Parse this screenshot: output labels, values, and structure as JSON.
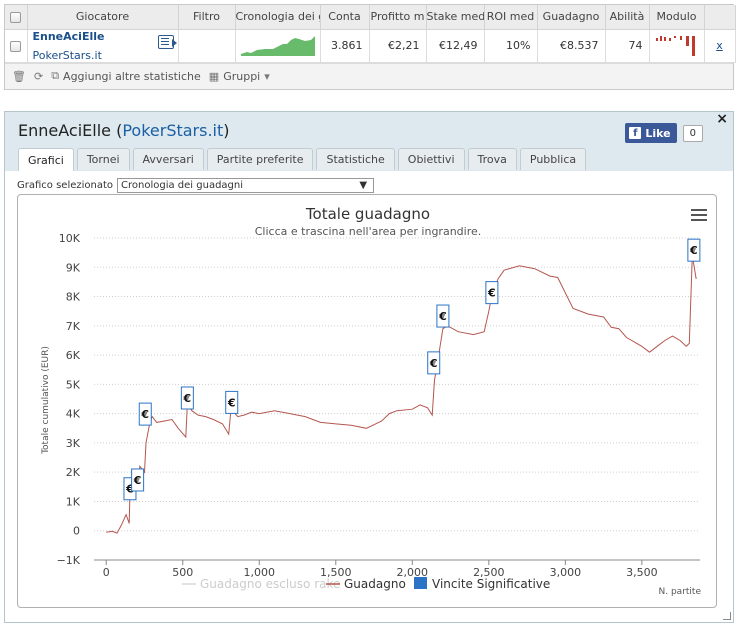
{
  "table": {
    "headers": [
      "",
      "Giocatore",
      "Filtro",
      "Cronologia dei g",
      "Conta",
      "Profitto m",
      "Stake med",
      "ROI med",
      "Guadagno",
      "Abilità",
      "Modulo",
      ""
    ],
    "row": {
      "player_name": "EnneAciElle",
      "site": "PokerStars.it",
      "filter": "",
      "count": "3.861",
      "avg_profit": "€2,21",
      "avg_stake": "€12,49",
      "avg_roi": "10%",
      "profit": "€8.537",
      "ability": "74",
      "remove": "x"
    },
    "sparkline_color": "#4caf50",
    "form_color": "#c0392b"
  },
  "toolbar": {
    "add_stats": "Aggiungi altre statistiche",
    "groups": "Gruppi"
  },
  "panel": {
    "player": "EnneAciElle",
    "open_paren": "(",
    "site": "PokerStars.it",
    "close_paren": ")",
    "close": "×",
    "like_label": "Like",
    "like_count": "0",
    "tabs": [
      "Grafici",
      "Tornei",
      "Avversari",
      "Partite preferite",
      "Statistiche",
      "Obiettivi",
      "Trova",
      "Pubblica"
    ],
    "active_tab": "Grafici",
    "selected_chart_label": "Grafico selezionato",
    "selected_chart_value": "Cronologia dei guadagni"
  },
  "chart_data": {
    "type": "line",
    "title": "Totale guadagno",
    "subtitle": "Clicca e trascina nell'area per ingrandire.",
    "ylabel": "Totale cumulativo (EUR)",
    "xlabel": "N. partite",
    "ylim": [
      -1000,
      10000
    ],
    "xlim": [
      -80,
      3880
    ],
    "y_ticks": [
      "−1K",
      "0",
      "1K",
      "2K",
      "3K",
      "4K",
      "5K",
      "6K",
      "7K",
      "8K",
      "9K",
      "10K"
    ],
    "y_tick_values": [
      -1000,
      0,
      1000,
      2000,
      3000,
      4000,
      5000,
      6000,
      7000,
      8000,
      9000,
      10000
    ],
    "x_ticks": [
      "0",
      "500",
      "1,000",
      "1,500",
      "2,000",
      "2,500",
      "3,000",
      "3,500"
    ],
    "x_tick_values": [
      0,
      500,
      1000,
      1500,
      2000,
      2500,
      3000,
      3500
    ],
    "grid": "horizontal dotted",
    "legend": "bottom",
    "legend_items": [
      {
        "name": "Guadagno escluso rake",
        "color": "#d8d8d8",
        "kind": "line",
        "hidden": true
      },
      {
        "name": "Guadagno",
        "color": "#b5564f",
        "kind": "line"
      },
      {
        "name": "Vincite Significative",
        "color": "#2b73c7",
        "kind": "square"
      }
    ],
    "series": [
      {
        "name": "Guadagno",
        "color": "#b5564f",
        "points": [
          [
            0,
            -50
          ],
          [
            40,
            -20
          ],
          [
            70,
            -80
          ],
          [
            100,
            200
          ],
          [
            130,
            550
          ],
          [
            150,
            250
          ],
          [
            155,
            1400
          ],
          [
            180,
            1700
          ],
          [
            200,
            1500
          ],
          [
            220,
            2200
          ],
          [
            250,
            2000
          ],
          [
            260,
            3000
          ],
          [
            285,
            3700
          ],
          [
            300,
            3900
          ],
          [
            330,
            3700
          ],
          [
            380,
            3750
          ],
          [
            430,
            3800
          ],
          [
            470,
            3500
          ],
          [
            520,
            3200
          ],
          [
            530,
            4300
          ],
          [
            560,
            4100
          ],
          [
            600,
            3950
          ],
          [
            650,
            3900
          ],
          [
            700,
            3800
          ],
          [
            760,
            3650
          ],
          [
            800,
            3300
          ],
          [
            815,
            4150
          ],
          [
            860,
            3900
          ],
          [
            900,
            3950
          ],
          [
            950,
            4050
          ],
          [
            1000,
            4000
          ],
          [
            1100,
            4100
          ],
          [
            1200,
            4000
          ],
          [
            1300,
            3900
          ],
          [
            1400,
            3700
          ],
          [
            1500,
            3650
          ],
          [
            1600,
            3600
          ],
          [
            1700,
            3500
          ],
          [
            1800,
            3750
          ],
          [
            1850,
            4000
          ],
          [
            1900,
            4100
          ],
          [
            2000,
            4150
          ],
          [
            2050,
            4300
          ],
          [
            2100,
            4200
          ],
          [
            2130,
            3950
          ],
          [
            2145,
            5150
          ],
          [
            2160,
            5600
          ],
          [
            2200,
            6900
          ],
          [
            2230,
            7000
          ],
          [
            2300,
            6800
          ],
          [
            2400,
            6700
          ],
          [
            2470,
            6800
          ],
          [
            2500,
            7500
          ],
          [
            2520,
            8050
          ],
          [
            2560,
            8600
          ],
          [
            2600,
            8900
          ],
          [
            2700,
            9050
          ],
          [
            2800,
            8950
          ],
          [
            2900,
            8700
          ],
          [
            2950,
            8650
          ],
          [
            3050,
            7600
          ],
          [
            3150,
            7400
          ],
          [
            3250,
            7300
          ],
          [
            3300,
            6950
          ],
          [
            3350,
            6900
          ],
          [
            3400,
            6600
          ],
          [
            3500,
            6300
          ],
          [
            3550,
            6100
          ],
          [
            3600,
            6300
          ],
          [
            3650,
            6500
          ],
          [
            3700,
            6650
          ],
          [
            3750,
            6500
          ],
          [
            3790,
            6300
          ],
          [
            3810,
            6400
          ],
          [
            3830,
            9400
          ],
          [
            3855,
            8600
          ]
        ]
      }
    ],
    "flags": [
      {
        "x": 155,
        "y": 1400,
        "label": "€"
      },
      {
        "x": 205,
        "y": 1700,
        "label": "€"
      },
      {
        "x": 255,
        "y": 3950,
        "label": "€"
      },
      {
        "x": 530,
        "y": 4500,
        "label": "€"
      },
      {
        "x": 820,
        "y": 4350,
        "label": "€"
      },
      {
        "x": 2140,
        "y": 5700,
        "label": "€"
      },
      {
        "x": 2200,
        "y": 7300,
        "label": "€"
      },
      {
        "x": 2520,
        "y": 8100,
        "label": "€"
      },
      {
        "x": 3840,
        "y": 9550,
        "label": "€"
      }
    ]
  }
}
